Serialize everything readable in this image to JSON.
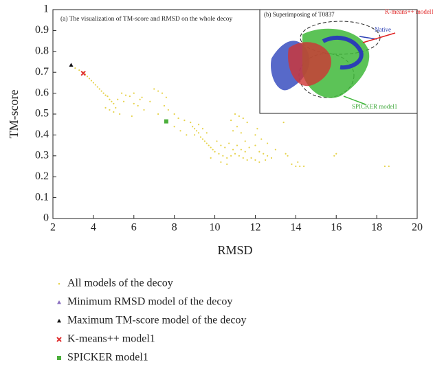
{
  "chart_data": {
    "type": "scatter",
    "title": "(a) The visualization of TM-score and RMSD on the whole decoy",
    "x_label": "RMSD",
    "y_label": "TM-score",
    "xlim": [
      2,
      20
    ],
    "xticks": [
      2,
      4,
      6,
      8,
      10,
      12,
      14,
      16,
      18,
      20
    ],
    "ylim": [
      0,
      1
    ],
    "yticks": [
      0,
      0.1,
      0.2,
      0.3,
      0.4,
      0.5,
      0.6,
      0.7,
      0.8,
      0.9,
      1
    ],
    "inset_annotations": [
      "(b) Superimposing of T0837",
      "Native",
      "K-means++ model1",
      "SPICKER model1"
    ],
    "series": [
      {
        "name": "All models of the decoy",
        "color": "#e6d24a",
        "marker": "dot",
        "x": [
          3.1,
          3.3,
          3.5,
          3.6,
          3.7,
          3.8,
          3.9,
          4.0,
          4.1,
          4.2,
          4.3,
          4.4,
          4.5,
          4.6,
          4.7,
          4.8,
          4.9,
          5.0,
          4.6,
          4.8,
          5.0,
          5.1,
          5.2,
          5.4,
          5.6,
          5.8,
          5.5,
          6.0,
          6.2,
          6.5,
          6.0,
          6.4,
          6.8,
          7.0,
          7.2,
          7.4,
          7.6,
          7.5,
          7.7,
          7.2,
          8.0,
          8.2,
          8.5,
          8.8,
          8.9,
          9.0,
          9.1,
          9.2,
          9.0,
          9.3,
          9.4,
          9.5,
          9.6,
          9.7,
          9.8,
          9.9,
          10.0,
          9.2,
          9.4,
          9.6,
          10.2,
          10.4,
          10.6,
          10.8,
          11.0,
          11.2,
          11.4,
          11.6,
          11.8,
          12.0,
          10.3,
          10.5,
          10.7,
          10.9,
          11.1,
          11.3,
          11.5,
          11.7,
          12.2,
          12.4,
          12.6,
          12.8,
          12.5,
          12.2,
          10.8,
          11.0,
          11.2,
          11.4,
          11.6,
          11.1,
          10.9,
          11.3,
          12.0,
          12.3,
          12.1,
          13.4,
          13.5,
          13.6,
          13.8,
          14.0,
          14.2,
          14.4,
          14.1,
          15.9,
          16.0,
          18.4,
          18.6,
          8.0,
          8.3,
          8.6,
          10.1,
          10.3,
          10.6,
          11.5,
          12.0,
          13.0,
          9.8,
          12.6,
          6.3,
          5.9,
          5.3
        ],
        "values": [
          0.72,
          0.71,
          0.7,
          0.69,
          0.68,
          0.67,
          0.66,
          0.65,
          0.64,
          0.63,
          0.62,
          0.61,
          0.6,
          0.59,
          0.585,
          0.57,
          0.56,
          0.55,
          0.53,
          0.52,
          0.51,
          0.53,
          0.57,
          0.6,
          0.59,
          0.585,
          0.56,
          0.55,
          0.54,
          0.52,
          0.6,
          0.58,
          0.56,
          0.62,
          0.61,
          0.6,
          0.58,
          0.54,
          0.52,
          0.5,
          0.5,
          0.48,
          0.47,
          0.46,
          0.44,
          0.43,
          0.42,
          0.41,
          0.4,
          0.39,
          0.38,
          0.37,
          0.36,
          0.35,
          0.34,
          0.33,
          0.32,
          0.45,
          0.43,
          0.41,
          0.31,
          0.3,
          0.29,
          0.3,
          0.31,
          0.3,
          0.29,
          0.28,
          0.29,
          0.28,
          0.35,
          0.34,
          0.36,
          0.33,
          0.35,
          0.33,
          0.32,
          0.34,
          0.32,
          0.31,
          0.3,
          0.29,
          0.28,
          0.27,
          0.47,
          0.5,
          0.49,
          0.48,
          0.46,
          0.44,
          0.42,
          0.41,
          0.4,
          0.38,
          0.43,
          0.46,
          0.31,
          0.3,
          0.26,
          0.25,
          0.25,
          0.25,
          0.27,
          0.3,
          0.31,
          0.25,
          0.25,
          0.44,
          0.42,
          0.4,
          0.37,
          0.27,
          0.26,
          0.37,
          0.35,
          0.33,
          0.29,
          0.36,
          0.57,
          0.49,
          0.5
        ]
      },
      {
        "name": "Minimum RMSD model of the decoy",
        "color": "#8a6fc0",
        "marker": "triangle",
        "x": [
          2.9
        ],
        "values": [
          0.735
        ]
      },
      {
        "name": "Maximum TM-score model of the decoy",
        "color": "#111111",
        "marker": "triangle",
        "x": [
          2.9
        ],
        "values": [
          0.735
        ]
      },
      {
        "name": "K-means++ model1",
        "color": "#e03030",
        "marker": "x",
        "x": [
          3.5
        ],
        "values": [
          0.695
        ]
      },
      {
        "name": "SPICKER model1",
        "color": "#4caf3c",
        "marker": "square",
        "x": [
          7.6
        ],
        "values": [
          0.465
        ]
      }
    ]
  }
}
